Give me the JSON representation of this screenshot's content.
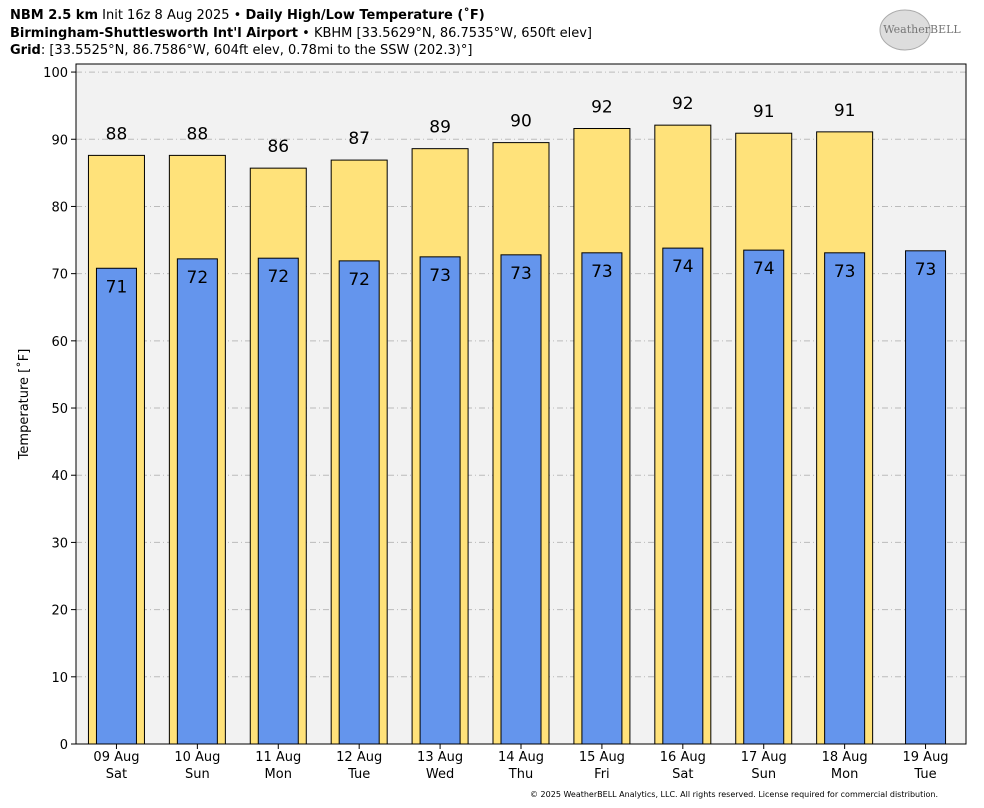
{
  "header": {
    "line1": [
      "NBM 2.5 km",
      " Init 16z 8 Aug 2025 • ",
      "Daily High/Low Temperature (˚F)"
    ],
    "line2": [
      "Birmingham-Shuttlesworth Int'l Airport",
      " • KBHM [33.5629°N, 86.7535°W, 650ft elev]"
    ],
    "line3": [
      "Grid",
      ": [33.5525°N, 86.7586°W, 604ft elev, 0.78mi to the SSW (202.3)°]"
    ],
    "logo": "WeatherBELL"
  },
  "footer": "© 2025 WeatherBELL Analytics, LLC. All rights reserved. License required for commercial distribution.",
  "chart_data": {
    "type": "bar",
    "y_label": "Temperature [˚F]",
    "categories": [
      "09 Aug",
      "10 Aug",
      "11 Aug",
      "12 Aug",
      "13 Aug",
      "14 Aug",
      "15 Aug",
      "16 Aug",
      "17 Aug",
      "18 Aug",
      "19 Aug"
    ],
    "weekdays": [
      "Sat",
      "Sun",
      "Mon",
      "Tue",
      "Wed",
      "Thu",
      "Fri",
      "Sat",
      "Sun",
      "Mon",
      "Tue"
    ],
    "series": [
      {
        "color": "#ffe27a",
        "values": [
          87.6,
          87.6,
          85.7,
          86.9,
          88.6,
          89.5,
          91.6,
          92.1,
          90.9,
          91.1,
          null
        ],
        "value_labels": [
          "88",
          "88",
          "86",
          "87",
          "89",
          "90",
          "92",
          "92",
          "91",
          "91",
          null
        ]
      },
      {
        "color": "#6495ed",
        "values": [
          70.8,
          72.2,
          72.3,
          71.9,
          72.5,
          72.8,
          73.1,
          73.8,
          73.5,
          73.1,
          73.4
        ],
        "value_labels": [
          "71",
          "72",
          "72",
          "72",
          "73",
          "73",
          "73",
          "74",
          "74",
          "73",
          "73"
        ]
      }
    ],
    "ylim": [
      0,
      101.2
    ],
    "yticks": [
      0,
      10,
      20,
      30,
      40,
      50,
      60,
      70,
      80,
      90,
      100
    ],
    "grid": true
  }
}
